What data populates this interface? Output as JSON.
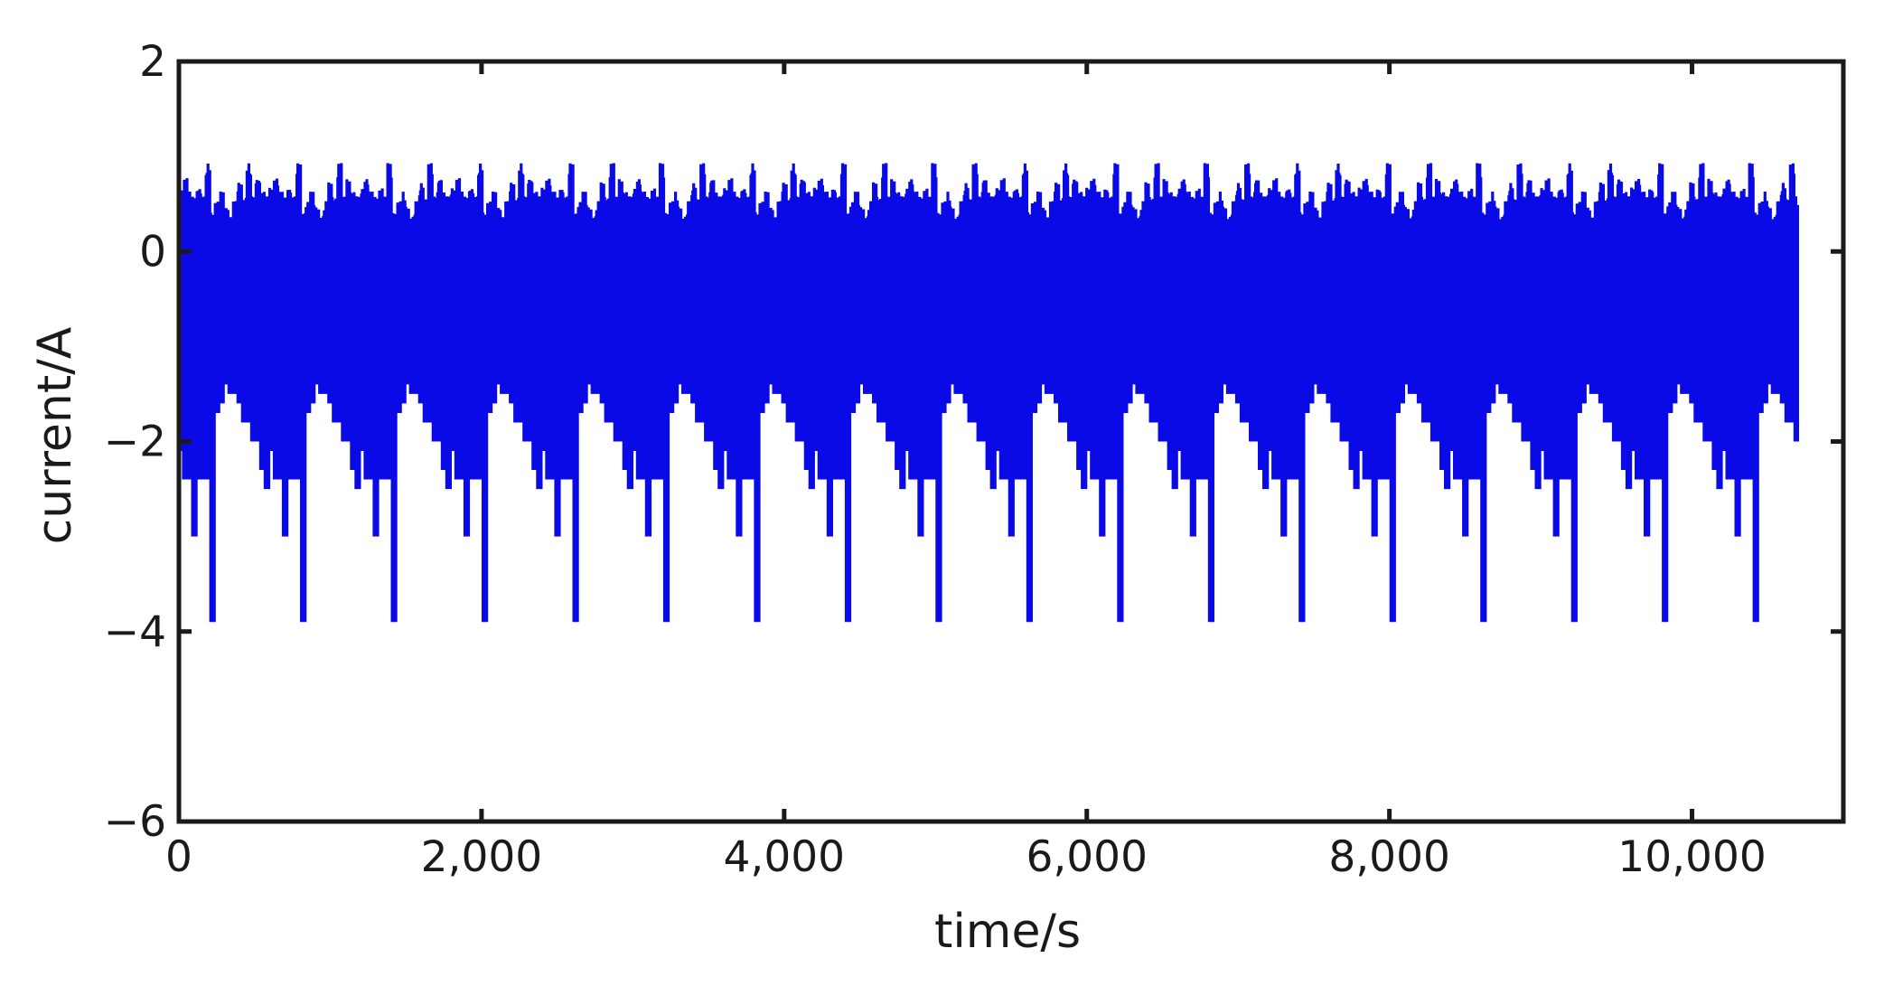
{
  "chart_data": {
    "type": "line",
    "title": "",
    "xlabel": "time/s",
    "ylabel": "current/A",
    "xlim": [
      0,
      11000
    ],
    "ylim": [
      -6,
      2
    ],
    "xticks": [
      0,
      2000,
      4000,
      6000,
      8000,
      10000
    ],
    "xtick_labels": [
      "0",
      "2,000",
      "4,000",
      "6,000",
      "8,000",
      "10,000"
    ],
    "yticks": [
      -6,
      -4,
      -2,
      0,
      2
    ],
    "ytick_labels": [
      "−6",
      "−4",
      "−2",
      "0",
      "2"
    ],
    "grid": false,
    "legend": "none",
    "line_color": "#0a0ae6",
    "axis_color": "#1a1a1a",
    "data_range": {
      "x_start": 0,
      "x_end": 10700,
      "y_min": -4.0,
      "y_max": 0.85
    },
    "series": [
      {
        "cycle_period": 600,
        "cycles": 17.8,
        "x": [
          0,
          30,
          60,
          90,
          120,
          150,
          180,
          210,
          240,
          270,
          300,
          330,
          360,
          390,
          420,
          450,
          480,
          510,
          540,
          570,
          600
        ],
        "upper": [
          0.6,
          0.7,
          0.55,
          0.5,
          0.6,
          0.5,
          0.85,
          0.35,
          0.45,
          0.55,
          0.4,
          0.3,
          0.45,
          0.65,
          0.5,
          0.85,
          0.5,
          0.7,
          0.55,
          0.5,
          0.6
        ],
        "lower": [
          -2.1,
          -2.4,
          -2.4,
          -3.0,
          -2.4,
          -2.4,
          -2.4,
          -3.9,
          -1.7,
          -1.6,
          -1.4,
          -1.5,
          -1.5,
          -1.6,
          -1.8,
          -1.8,
          -2.0,
          -2.0,
          -2.3,
          -2.5,
          -4.0
        ]
      }
    ]
  }
}
